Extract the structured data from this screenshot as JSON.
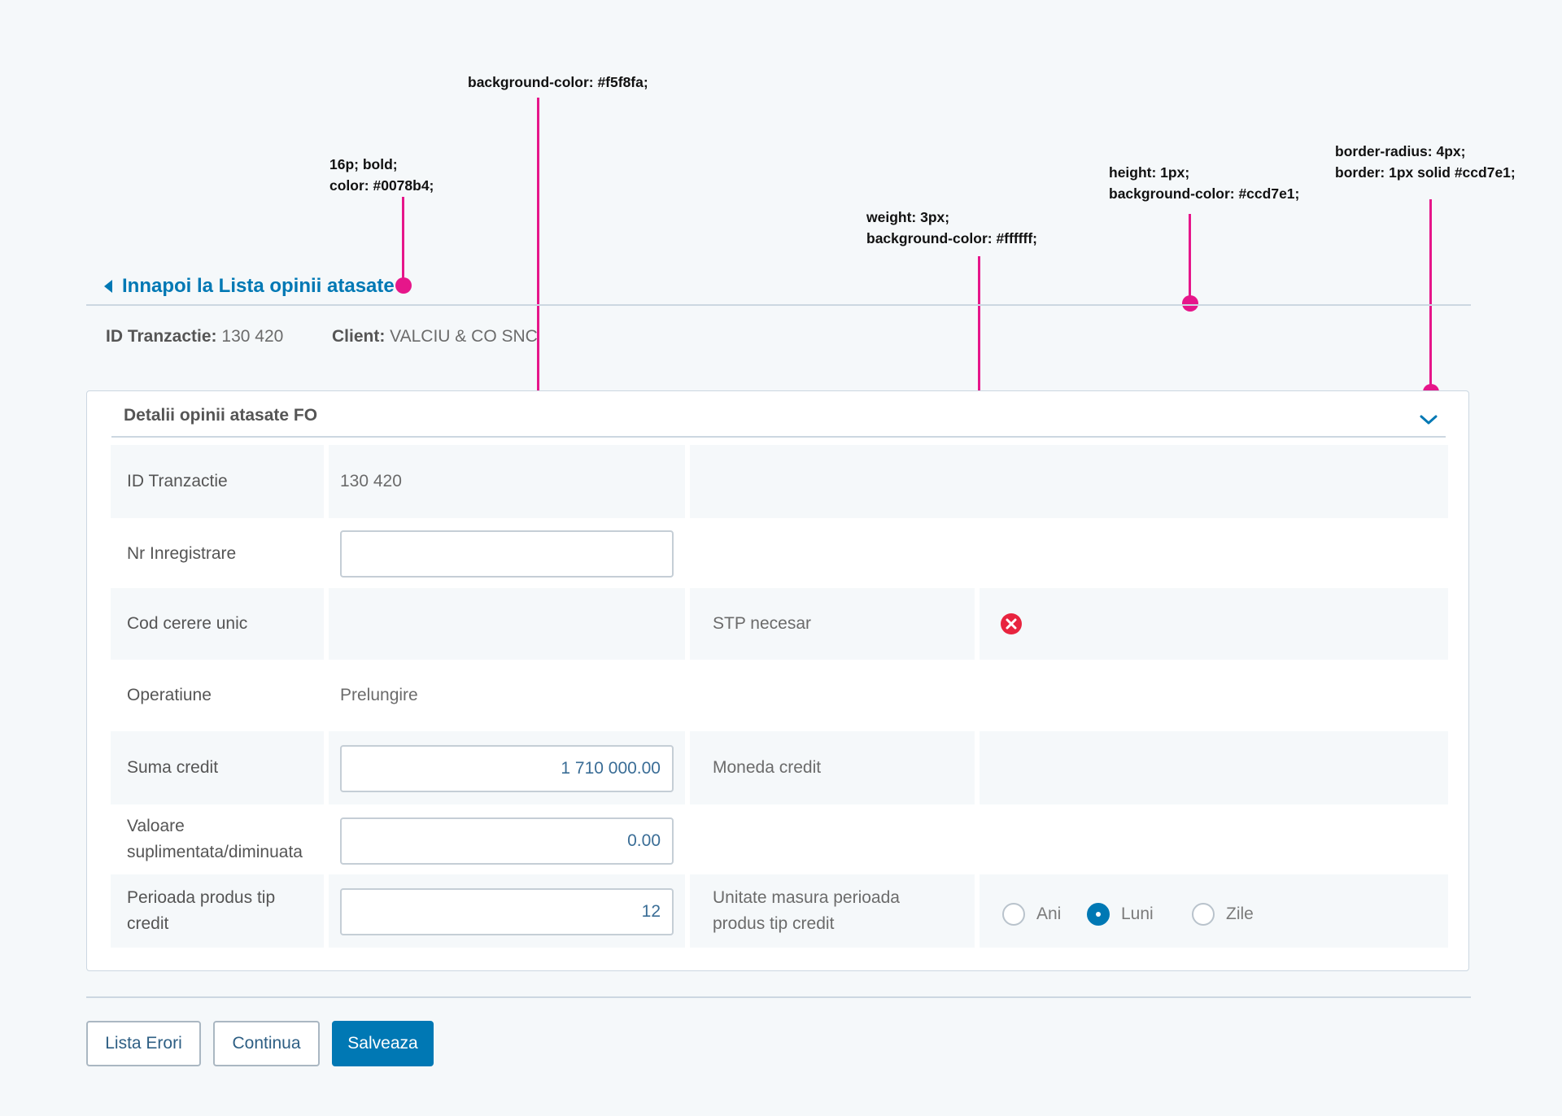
{
  "annotations": {
    "bg": [
      "background-color: #f5f8fa;"
    ],
    "font": [
      "16p; bold;",
      "color: #0078b4;"
    ],
    "weight": [
      "weight: 3px;",
      "background-color: #ffffff;"
    ],
    "height": [
      "height: 1px;",
      "background-color: #ccd7e1;"
    ],
    "border": [
      "border-radius: 4px;",
      "border: 1px solid #ccd7e1;"
    ]
  },
  "back_link": {
    "label": "Innapoi la Lista opinii atasate",
    "icon": "caret-left-icon"
  },
  "summary": {
    "id_label": "ID Tranzactie:",
    "id_value": "130 420",
    "client_label": "Client:",
    "client_value": "VALCIU & CO SNC"
  },
  "panel": {
    "title": "Detalii opinii atasate FO",
    "collapse_icon": "chevron-down-icon",
    "rows": {
      "id_tranzactie": {
        "label": "ID Tranzactie",
        "value": "130 420"
      },
      "nr_inregistrare": {
        "label": "Nr Inregistrare",
        "value": ""
      },
      "cod_cerere": {
        "label": "Cod cerere unic",
        "value": ""
      },
      "stp": {
        "label": "STP necesar",
        "icon": "error-x-icon"
      },
      "operatiune": {
        "label": "Operatiune",
        "value": "Prelungire"
      },
      "suma_credit": {
        "label": "Suma credit",
        "value": "1 710 000.00"
      },
      "moneda_credit": {
        "label": "Moneda credit",
        "value": ""
      },
      "valoare": {
        "label_line1": "Valoare",
        "label_line2": "suplimentata/diminuata",
        "value": "0.00"
      },
      "perioada": {
        "label_line1": "Perioada produs tip",
        "label_line2": "credit",
        "value": "12"
      },
      "unitate": {
        "label_line1": "Unitate masura perioada",
        "label_line2": "produs tip credit",
        "options": [
          "Ani",
          "Luni",
          "Zile"
        ],
        "selected": "Luni"
      }
    }
  },
  "buttons": {
    "lista_erori": "Lista Erori",
    "continua": "Continua",
    "salveaza": "Salveaza"
  },
  "colors": {
    "accent": "#0078b4",
    "annotation": "#e6168a",
    "error": "#e8243f",
    "border": "#ccd7e1",
    "shade": "#f5f8fa"
  }
}
